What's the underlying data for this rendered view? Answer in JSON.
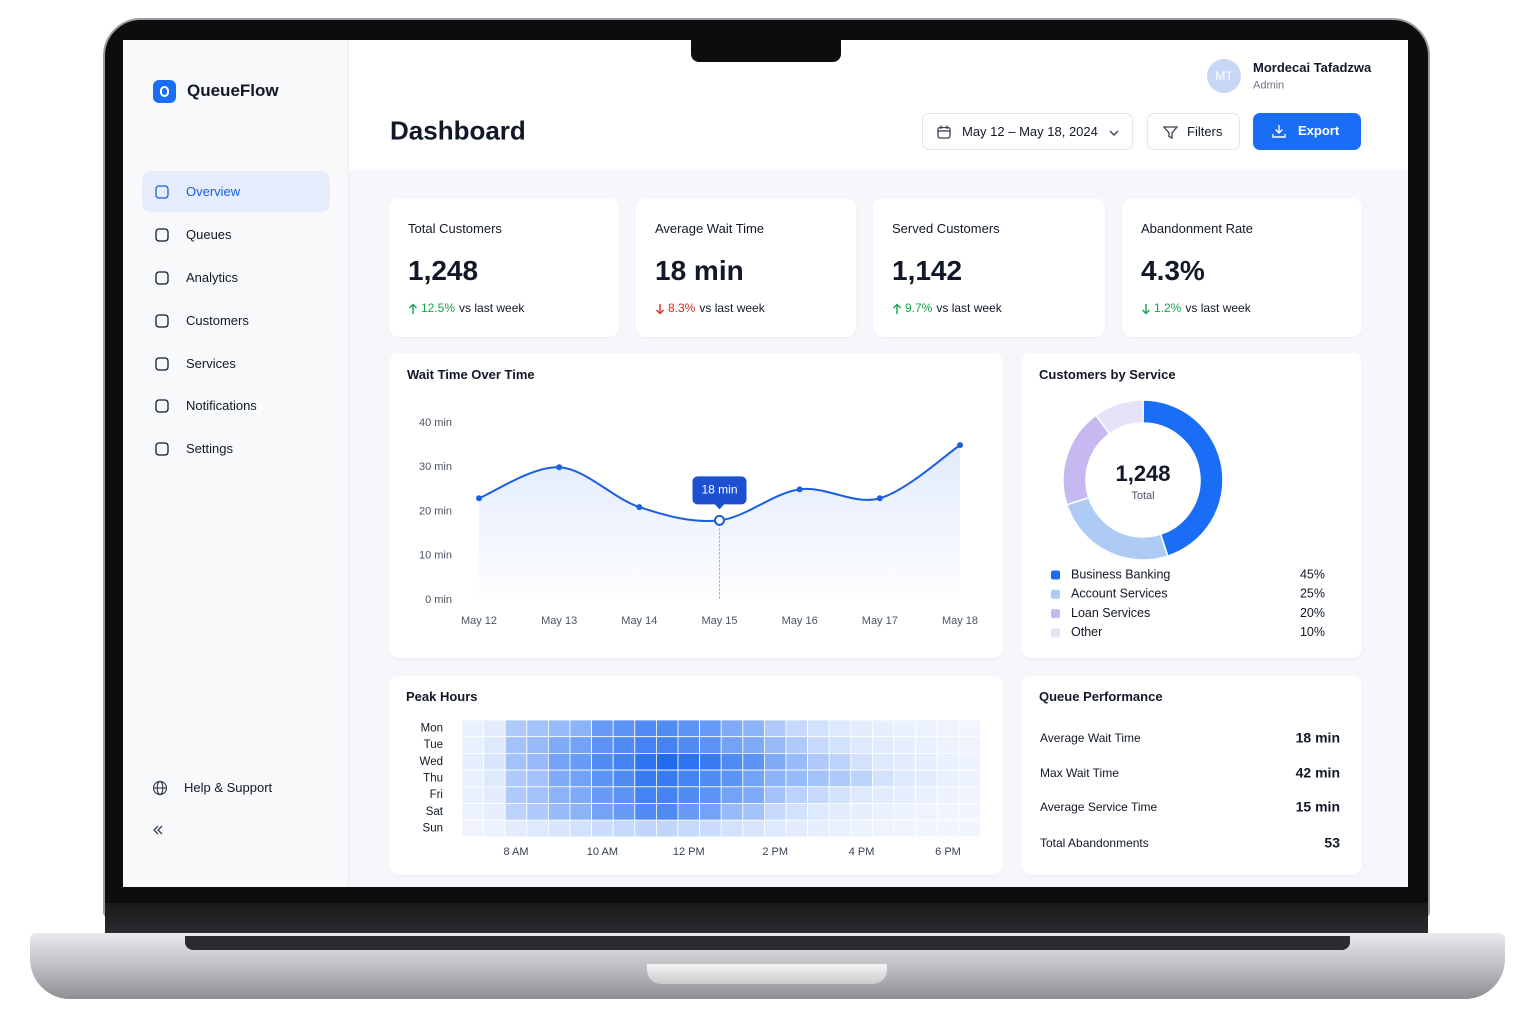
{
  "app": {
    "name": "QueueFlow"
  },
  "nav": [
    "Overview",
    "Queues",
    "Analytics",
    "Customers",
    "Services",
    "Notifications",
    "Settings"
  ],
  "footer_nav": [
    "Help & Support"
  ],
  "user": {
    "initials": "MT",
    "name": "Mordecai Tafadzwa",
    "role": "Admin"
  },
  "header": {
    "title": "Dashboard",
    "date_range": "May 12 – May 18, 2024",
    "filters": "Filters",
    "export": "Export"
  },
  "kpis": [
    {
      "label": "Total Customers",
      "value": "1,248",
      "change": "12.5%",
      "note": "vs last week",
      "trend": "up",
      "change_color": "#16a34a"
    },
    {
      "label": "Average Wait Time",
      "value": "18 min",
      "change": "8.3%",
      "note": "vs last week",
      "trend": "down",
      "change_color": "#dc2626"
    },
    {
      "label": "Served Customers",
      "value": "1,142",
      "change": "9.7%",
      "note": "vs last week",
      "trend": "up",
      "change_color": "#16a34a"
    },
    {
      "label": "Abandonment Rate",
      "value": "4.3%",
      "change": "1.2%",
      "note": "vs last week",
      "trend": "down",
      "change_color": "#16a34a"
    }
  ],
  "queue_performance": {
    "title": "Queue Performance",
    "rows": [
      [
        "Average Wait Time",
        "18 min"
      ],
      [
        "Max Wait Time",
        "42 min"
      ],
      [
        "Average Service Time",
        "15 min"
      ],
      [
        "Total Abandonments",
        "53"
      ]
    ]
  },
  "chart_data": [
    {
      "type": "line",
      "title": "Wait Time Over Time",
      "categories": [
        "May 12",
        "May 13",
        "May 14",
        "May 15",
        "May 16",
        "May 17",
        "May 18"
      ],
      "values": [
        23,
        30,
        21,
        18,
        25,
        23,
        35
      ],
      "color": "#1a5fe0",
      "ylim": [
        0,
        40
      ],
      "yticks": [
        {
          "value": 0,
          "label": "0 min"
        },
        {
          "value": 10,
          "label": "10 min"
        },
        {
          "value": 20,
          "label": "20 min"
        },
        {
          "value": 30,
          "label": "30 min"
        },
        {
          "value": 40,
          "label": "40 min"
        }
      ],
      "grid": false,
      "annotation": {
        "text": "18 min",
        "x": "May 15"
      }
    },
    {
      "type": "pie",
      "donut": true,
      "title": "Customers by Service",
      "center_label": "1,248",
      "center_sublabel": "Total",
      "categories": [
        "Business Banking",
        "Account Services",
        "Loan Services",
        "Other"
      ],
      "values": [
        45,
        25,
        20,
        10
      ],
      "value_labels": [
        "45%",
        "25%",
        "20%",
        "10%"
      ],
      "colors": [
        "#1a6ef5",
        "#aecbf6",
        "#c6b8f1",
        "#e6e2f9"
      ]
    },
    {
      "type": "heatmap",
      "title": "Peak Hours",
      "y_categories": [
        "Mon",
        "Tue",
        "Wed",
        "Thu",
        "Fri",
        "Sat",
        "Sun"
      ],
      "x_categories": [
        null,
        null,
        "8 AM",
        null,
        null,
        null,
        "10 AM",
        null,
        null,
        null,
        "12 PM",
        null,
        null,
        null,
        "2 PM",
        null,
        null,
        null,
        "4 PM",
        null,
        null,
        null,
        "6 PM",
        null
      ],
      "values": [
        [
          5,
          8,
          30,
          35,
          40,
          45,
          60,
          65,
          70,
          70,
          65,
          60,
          50,
          45,
          30,
          20,
          15,
          10,
          8,
          6,
          5,
          4,
          3,
          2
        ],
        [
          5,
          10,
          35,
          40,
          50,
          55,
          65,
          70,
          75,
          75,
          70,
          65,
          55,
          50,
          40,
          30,
          20,
          15,
          10,
          8,
          6,
          5,
          4,
          3
        ],
        [
          6,
          12,
          35,
          40,
          55,
          60,
          70,
          75,
          85,
          90,
          85,
          80,
          70,
          65,
          50,
          40,
          30,
          25,
          15,
          10,
          8,
          6,
          5,
          4
        ],
        [
          5,
          10,
          30,
          35,
          50,
          55,
          65,
          70,
          80,
          80,
          75,
          70,
          65,
          55,
          45,
          40,
          35,
          30,
          25,
          15,
          10,
          8,
          5,
          4
        ],
        [
          5,
          8,
          30,
          35,
          45,
          50,
          60,
          65,
          75,
          75,
          70,
          65,
          55,
          50,
          35,
          25,
          20,
          15,
          10,
          8,
          6,
          5,
          4,
          3
        ],
        [
          4,
          6,
          25,
          30,
          40,
          45,
          55,
          60,
          70,
          70,
          60,
          55,
          40,
          35,
          20,
          15,
          10,
          8,
          6,
          5,
          4,
          3,
          2,
          2
        ],
        [
          3,
          4,
          8,
          10,
          12,
          15,
          18,
          20,
          22,
          22,
          20,
          18,
          15,
          12,
          10,
          8,
          6,
          5,
          4,
          3,
          3,
          2,
          2,
          2
        ]
      ],
      "zlim": [
        0,
        100
      ],
      "color": "#0a5cf0"
    }
  ]
}
